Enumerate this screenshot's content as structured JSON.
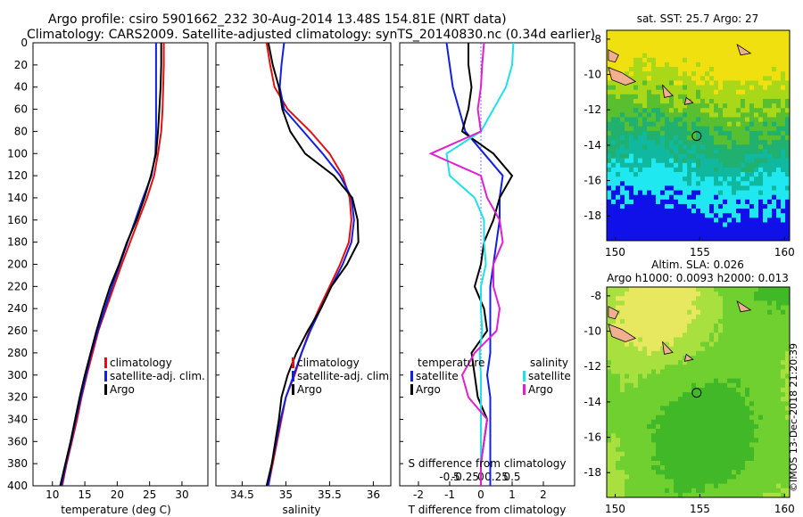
{
  "header": {
    "line1": "Argo profile: csiro 5901662_232 30-Aug-2014 13.48S 154.81E (NRT data)",
    "line2": "Climatology: CARS2009. Satellite-adjusted climatology: synTS_20140830.nc (0.34d earlier)"
  },
  "colors": {
    "climatology": "#e01010",
    "satellite": "#1020e0",
    "argo": "#000000",
    "sal_sat": "#20e0e8",
    "sal_argo": "#e020d0"
  },
  "chart_data": [
    {
      "type": "line",
      "name": "temperature",
      "xlabel": "temperature (deg C)",
      "ylabel": "",
      "xlim": [
        7,
        34
      ],
      "ylim": [
        0,
        400
      ],
      "xticks": [
        "10",
        "15",
        "20",
        "25",
        "30"
      ],
      "yticks": [
        "0",
        "20",
        "40",
        "60",
        "80",
        "100",
        "120",
        "140",
        "160",
        "180",
        "200",
        "220",
        "240",
        "260",
        "280",
        "300",
        "320",
        "340",
        "360",
        "380",
        "400"
      ],
      "legend": [
        "climatology",
        "satellite-adj. clim.",
        "Argo"
      ],
      "series": [
        {
          "name": "climatology",
          "depth": [
            0,
            20,
            40,
            60,
            80,
            100,
            120,
            140,
            160,
            180,
            200,
            220,
            240,
            260,
            280,
            300,
            320,
            340,
            360,
            380,
            400
          ],
          "values": [
            27.2,
            27.2,
            27.1,
            27.0,
            26.8,
            26.3,
            25.7,
            24.6,
            23.3,
            22.0,
            20.7,
            19.5,
            18.3,
            17.1,
            16.2,
            15.3,
            14.5,
            13.8,
            13.0,
            12.2,
            11.5
          ]
        },
        {
          "name": "satellite-adj. clim.",
          "depth": [
            0,
            20,
            40,
            60,
            80,
            100,
            120,
            140,
            160,
            180,
            200,
            220,
            240,
            260,
            280,
            300,
            320,
            340,
            360,
            380,
            400
          ],
          "values": [
            26.0,
            26.0,
            26.0,
            26.0,
            26.0,
            25.9,
            25.3,
            24.0,
            22.8,
            21.6,
            20.4,
            19.2,
            18.1,
            17.0,
            16.0,
            15.2,
            14.4,
            13.6,
            12.9,
            12.1,
            11.4
          ]
        },
        {
          "name": "Argo",
          "depth": [
            0,
            20,
            40,
            60,
            80,
            100,
            120,
            140,
            160,
            180,
            200,
            220,
            240,
            260,
            280,
            300,
            320,
            340,
            360,
            380,
            400
          ],
          "values": [
            26.8,
            26.8,
            26.7,
            26.5,
            26.3,
            26.0,
            25.2,
            24.2,
            23.0,
            21.5,
            20.3,
            18.9,
            17.8,
            16.8,
            15.9,
            15.0,
            14.2,
            13.5,
            12.8,
            12.0,
            11.2
          ]
        }
      ]
    },
    {
      "type": "line",
      "name": "salinity",
      "xlabel": "salinity",
      "xlim": [
        34.2,
        36.2
      ],
      "ylim": [
        0,
        400
      ],
      "xticks": [
        "34.5",
        "35",
        "35.5",
        "36"
      ],
      "legend": [
        "climatology",
        "satellite-adj. clim.",
        "Argo"
      ],
      "series": [
        {
          "name": "climatology",
          "depth": [
            0,
            20,
            40,
            60,
            80,
            100,
            120,
            140,
            160,
            180,
            200,
            220,
            240,
            260,
            280,
            300,
            320,
            340,
            360,
            380,
            400
          ],
          "values": [
            34.78,
            34.82,
            34.87,
            35.02,
            35.28,
            35.5,
            35.65,
            35.73,
            35.75,
            35.72,
            35.62,
            35.5,
            35.38,
            35.27,
            35.18,
            35.1,
            35.0,
            34.95,
            34.9,
            34.85,
            34.8
          ]
        },
        {
          "name": "satellite-adj. clim.",
          "depth": [
            0,
            20,
            40,
            60,
            80,
            100,
            120,
            140,
            160,
            180,
            200,
            220,
            240,
            260,
            280,
            300,
            320,
            340,
            360,
            380,
            400
          ],
          "values": [
            34.98,
            34.95,
            34.93,
            34.98,
            35.2,
            35.42,
            35.62,
            35.75,
            35.78,
            35.75,
            35.65,
            35.52,
            35.4,
            35.28,
            35.18,
            35.09,
            35.0,
            34.94,
            34.89,
            34.84,
            34.8
          ]
        },
        {
          "name": "Argo",
          "depth": [
            0,
            20,
            40,
            60,
            80,
            100,
            120,
            140,
            160,
            180,
            200,
            220,
            240,
            260,
            280,
            300,
            320,
            340,
            360,
            380,
            400
          ],
          "values": [
            34.8,
            34.85,
            34.92,
            34.96,
            35.05,
            35.22,
            35.55,
            35.76,
            35.82,
            35.83,
            35.7,
            35.52,
            35.4,
            35.25,
            35.12,
            35.02,
            34.95,
            34.92,
            34.88,
            34.84,
            34.78
          ]
        }
      ]
    },
    {
      "type": "line",
      "name": "difference",
      "xlabel": "T difference from climatology",
      "xlabel_top": "S difference from climatology",
      "xlim": [
        -2.6,
        3.0
      ],
      "ylim": [
        0,
        400
      ],
      "xticks": [
        "-2",
        "-1",
        "0",
        "1",
        "2"
      ],
      "xticks_top": [
        "-0.5",
        "-0.25",
        "0",
        "0.25",
        "0.5"
      ],
      "legend_left_title": "temperature",
      "legend_right_title": "salinity",
      "legend": [
        "satellite",
        "Argo",
        "satellite",
        "Argo"
      ],
      "series": [
        {
          "name": "temperature satellite",
          "depth": [
            0,
            20,
            40,
            60,
            80,
            100,
            120,
            140,
            160,
            180,
            200,
            220,
            240,
            260,
            280,
            300,
            320,
            340,
            360,
            380,
            400
          ],
          "values": [
            -1.1,
            -1.0,
            -0.9,
            -0.7,
            -0.5,
            0.1,
            0.7,
            0.6,
            0.6,
            0.5,
            0.4,
            0.3,
            0.3,
            0.3,
            0.3,
            0.2,
            0.3,
            0.3,
            0.3,
            0.3,
            0.3
          ]
        },
        {
          "name": "temperature Argo",
          "depth": [
            0,
            20,
            40,
            60,
            80,
            100,
            120,
            140,
            160,
            180,
            200,
            220,
            240,
            260,
            280,
            300,
            320,
            340,
            360,
            380,
            400
          ],
          "values": [
            -0.4,
            -0.4,
            -0.3,
            -0.4,
            -0.6,
            0.4,
            1.0,
            0.6,
            0.4,
            0.1,
            0.0,
            -0.2,
            0.1,
            0.2,
            -0.3,
            -0.2,
            -0.1,
            0.2,
            0.1,
            0.0,
            0.0
          ]
        },
        {
          "name": "salinity satellite",
          "depth": [
            0,
            20,
            40,
            60,
            80,
            100,
            120,
            140,
            160,
            180,
            200,
            220,
            240,
            260,
            280,
            300,
            320,
            340,
            360,
            380,
            400
          ],
          "values": [
            0.52,
            0.5,
            0.4,
            0.2,
            0.0,
            -0.55,
            -0.5,
            -0.1,
            0.05,
            0.05,
            0.08,
            0.0,
            0.0,
            0.02,
            -0.02,
            0.0,
            0.0,
            0.0,
            0.0,
            0.0,
            0.0
          ]
        },
        {
          "name": "salinity Argo",
          "depth": [
            0,
            20,
            40,
            60,
            80,
            100,
            120,
            140,
            160,
            180,
            200,
            220,
            240,
            260,
            280,
            300,
            320,
            340,
            360,
            380,
            400
          ],
          "values": [
            0.05,
            0.02,
            0.0,
            -0.05,
            0.0,
            -0.8,
            0.0,
            0.1,
            0.3,
            0.35,
            0.2,
            0.2,
            0.3,
            0.25,
            -0.1,
            -0.3,
            -0.2,
            0.1,
            0.05,
            0.0,
            0.0
          ]
        }
      ]
    },
    {
      "type": "heatmap",
      "name": "sst-map",
      "title": "sat. SST: 25.7 Argo: 27",
      "xticks": [
        "150",
        "155",
        "160"
      ],
      "yticks": [
        "-8",
        "-10",
        "-12",
        "-14",
        "-16",
        "-18"
      ],
      "xlim": [
        149.5,
        160.3
      ],
      "ylim": [
        -19.4,
        -7.5
      ],
      "argo_position": [
        154.81,
        -13.48
      ]
    },
    {
      "type": "heatmap",
      "name": "sla-map",
      "title": "Altim. SLA: 0.026",
      "subtitle": "Argo h1000: 0.0093 h2000: 0.013",
      "xticks": [
        "150",
        "155",
        "160"
      ],
      "yticks": [
        "-8",
        "-10",
        "-12",
        "-14",
        "-16",
        "-18"
      ],
      "xlim": [
        149.5,
        160.3
      ],
      "ylim": [
        -19.4,
        -7.5
      ],
      "argo_position": [
        154.81,
        -13.48
      ]
    }
  ],
  "watermark": "©IMOS 13-Dec-2018 21:20:39"
}
